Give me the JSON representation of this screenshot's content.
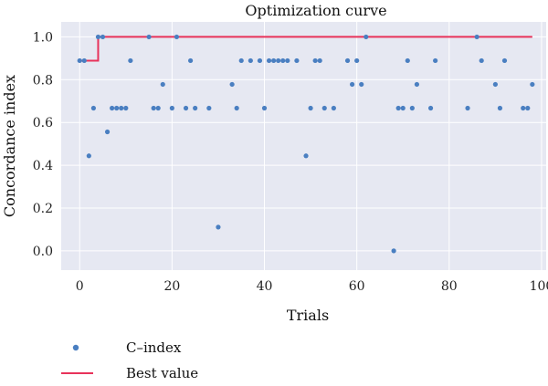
{
  "chart_data": {
    "type": "scatter",
    "title": "Optimization curve",
    "xlabel": "Trials",
    "ylabel": "Concordance index",
    "xlim": [
      -4,
      101
    ],
    "ylim": [
      -0.09,
      1.07
    ],
    "xticks": [
      0,
      20,
      40,
      60,
      80,
      100
    ],
    "yticks": [
      0.0,
      0.2,
      0.4,
      0.6,
      0.8,
      1.0
    ],
    "xtick_labels": [
      "0",
      "20",
      "40",
      "60",
      "80",
      "100"
    ],
    "ytick_labels": [
      "0.0",
      "0.2",
      "0.4",
      "0.6",
      "0.8",
      "1.0"
    ],
    "grid": true,
    "legend_position": "bottom-left, below plot",
    "background_color": "#e6e8f2",
    "grid_color": "#ffffff",
    "series": [
      {
        "name": "C–index",
        "kind": "scatter",
        "color": "#4a7fc1",
        "x": [
          0,
          1,
          2,
          3,
          4,
          5,
          6,
          7,
          8,
          9,
          10,
          11,
          15,
          16,
          17,
          18,
          20,
          21,
          23,
          24,
          25,
          28,
          30,
          33,
          34,
          35,
          37,
          39,
          40,
          41,
          42,
          43,
          44,
          45,
          47,
          49,
          50,
          51,
          52,
          53,
          55,
          58,
          59,
          60,
          61,
          62,
          68,
          69,
          70,
          71,
          72,
          73,
          76,
          77,
          84,
          86,
          87,
          90,
          91,
          92,
          96,
          97,
          98
        ],
        "y": [
          0.889,
          0.889,
          0.444,
          0.667,
          1.0,
          1.0,
          0.556,
          0.667,
          0.667,
          0.667,
          0.667,
          0.889,
          1.0,
          0.667,
          0.667,
          0.778,
          0.667,
          1.0,
          0.667,
          0.889,
          0.667,
          0.667,
          0.111,
          0.778,
          0.667,
          0.889,
          0.889,
          0.889,
          0.667,
          0.889,
          0.889,
          0.889,
          0.889,
          0.889,
          0.889,
          0.444,
          0.667,
          0.889,
          0.889,
          0.667,
          0.667,
          0.889,
          0.778,
          0.889,
          0.778,
          1.0,
          0.0,
          0.667,
          0.667,
          0.889,
          0.667,
          0.778,
          0.667,
          0.889,
          0.667,
          1.0,
          0.889,
          0.778,
          0.667,
          0.889,
          0.667,
          0.667,
          0.778
        ]
      },
      {
        "name": "Best value",
        "kind": "step-line",
        "color": "#e8325a",
        "x": [
          0,
          1,
          2,
          3,
          4,
          5,
          98
        ],
        "y": [
          0.889,
          0.889,
          0.889,
          0.889,
          1.0,
          1.0,
          1.0
        ]
      }
    ]
  }
}
